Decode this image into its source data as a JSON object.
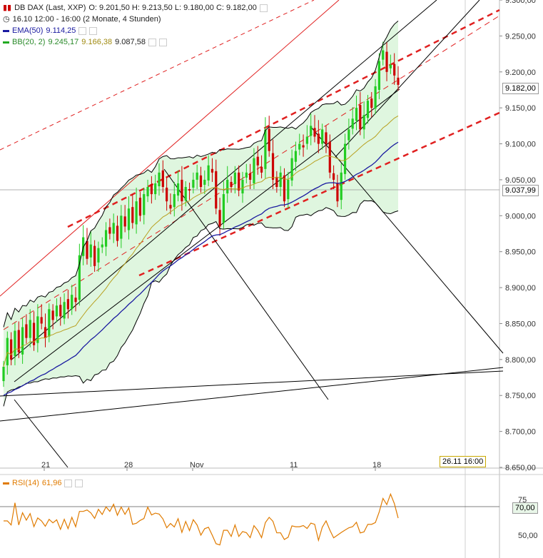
{
  "header": {
    "title": "DB DAX (Last, XXP)",
    "ohlc": "O: 9.201,50  H: 9.213,50  L: 9.180,00  C: 9.182,00",
    "period": "16.10 12:00 - 16:00 (2 Monate, 4 Stunden)",
    "ema_label": "EMA(50)",
    "ema_value": "9.114,25",
    "bb_label": "BB(20, 2)",
    "bb_values": [
      "9.245,17",
      "9.166,38",
      "9.087,58"
    ],
    "rsi_label": "RSI(14)",
    "rsi_value": "61,96"
  },
  "tags": {
    "last_price": "9.182,00",
    "crosshair_price": "9.037,99",
    "crosshair_time": "26.11 16:00",
    "rsi_level": "70,00"
  },
  "colors": {
    "up": "#22cc22",
    "down": "#cc0000",
    "ema": "#1a1aa0",
    "bb_mid": "#b8a020",
    "bb_band": "#000000",
    "bb_fill": "#dff6df",
    "rsi": "#e07b00",
    "trend_red": "#e02020"
  },
  "chart_data": [
    {
      "type": "candlestick",
      "y_axis_ticks": [
        "9.300,00",
        "9.250,00",
        "9.200,00",
        "9.150,00",
        "9.100,00",
        "9.050,00",
        "9.000,00",
        "8.950,00",
        "8.900,00",
        "8.850,00",
        "8.800,00",
        "8.750,00",
        "8.700,00",
        "8.650,00"
      ],
      "ylim": [
        8650,
        9300
      ],
      "x_tick_labels": [
        "21",
        "28",
        "Nov",
        "11",
        "18"
      ],
      "close": [
        8790,
        8830,
        8800,
        8840,
        8810,
        8845,
        8830,
        8855,
        8820,
        8860,
        8850,
        8830,
        8870,
        8855,
        8875,
        8860,
        8880,
        8870,
        8890,
        8880,
        8945,
        8970,
        8940,
        8960,
        8930,
        8955,
        8960,
        8980,
        8975,
        8990,
        8965,
        9000,
        8985,
        9010,
        8990,
        9020,
        9000,
        9030,
        9040,
        9030,
        9045,
        9060,
        9040,
        9020,
        9010,
        9030,
        9045,
        9020,
        9040,
        9035,
        9050,
        9060,
        9040,
        9050,
        9070,
        9060,
        9010,
        8985,
        9030,
        9050,
        9040,
        9060,
        9035,
        9050,
        9060,
        9050,
        9080,
        9070,
        9060,
        9120,
        9090,
        9050,
        9040,
        9060,
        9020,
        9050,
        9080,
        9090,
        9100,
        9095,
        9110,
        9125,
        9110,
        9100,
        9120,
        9100,
        9060,
        9050,
        9020,
        9060,
        9100,
        9120,
        9135,
        9150,
        9120,
        9140,
        9160,
        9150,
        9180,
        9215,
        9230,
        9200,
        9210,
        9195,
        9182
      ],
      "ema50_last": 9114.25,
      "bb_upper_last": 9245.17,
      "bb_mid_last": 9166.38,
      "bb_lower_last": 9087.58
    },
    {
      "type": "line",
      "name": "RSI(14)",
      "y_axis_ticks": [
        "75",
        "70,00",
        "50,00"
      ],
      "last": 61.96
    }
  ]
}
